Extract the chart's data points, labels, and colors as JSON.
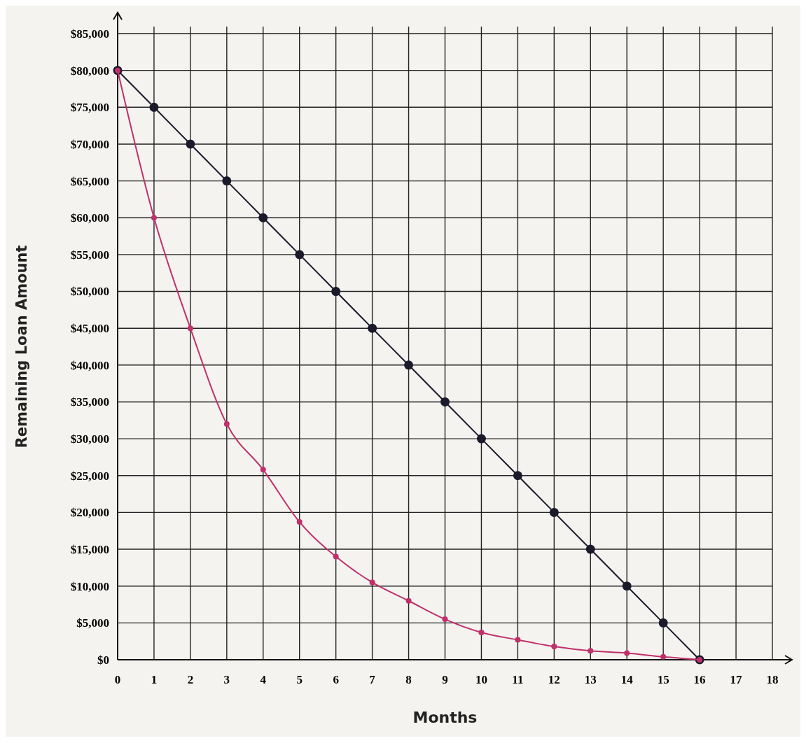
{
  "chart_data": {
    "type": "line",
    "xlabel": "Months",
    "ylabel": "Remaining Loan Amount",
    "x": [
      0,
      1,
      2,
      3,
      4,
      5,
      6,
      7,
      8,
      9,
      10,
      11,
      12,
      13,
      14,
      15,
      16
    ],
    "series": [
      {
        "color": "#1a1a2a",
        "values": [
          80000,
          75000,
          70000,
          65000,
          60000,
          55000,
          50000,
          45000,
          40000,
          35000,
          30000,
          25000,
          20000,
          15000,
          10000,
          5000,
          0
        ]
      },
      {
        "color": "#c0306a",
        "values": [
          80000,
          60000,
          45000,
          32000,
          25800,
          18700,
          14000,
          10500,
          8000,
          5500,
          3700,
          2700,
          1800,
          1200,
          900,
          400,
          0
        ]
      }
    ],
    "xlim": [
      0,
      18
    ],
    "xticks": [
      0,
      1,
      2,
      3,
      4,
      5,
      6,
      7,
      8,
      9,
      10,
      11,
      12,
      13,
      14,
      15,
      16,
      17,
      18
    ],
    "ylim": [
      0,
      85000
    ],
    "yticks": [
      {
        "value": 0,
        "label": "$0"
      },
      {
        "value": 5000,
        "label": "$5,000"
      },
      {
        "value": 10000,
        "label": "$10,000"
      },
      {
        "value": 15000,
        "label": "$15,000"
      },
      {
        "value": 20000,
        "label": "$20,000"
      },
      {
        "value": 25000,
        "label": "$25,000"
      },
      {
        "value": 30000,
        "label": "$30,000"
      },
      {
        "value": 35000,
        "label": "$35,000"
      },
      {
        "value": 40000,
        "label": "$40,000"
      },
      {
        "value": 45000,
        "label": "$45,000"
      },
      {
        "value": 50000,
        "label": "$50,000"
      },
      {
        "value": 55000,
        "label": "$55,000"
      },
      {
        "value": 60000,
        "label": "$60,000"
      },
      {
        "value": 65000,
        "label": "$65,000"
      },
      {
        "value": 70000,
        "label": "$70,000"
      },
      {
        "value": 75000,
        "label": "$75,000"
      },
      {
        "value": 80000,
        "label": "$80,000"
      },
      {
        "value": 85000,
        "label": "$85,000"
      }
    ],
    "grid": true,
    "marker": "circle",
    "line_style": "solid"
  }
}
